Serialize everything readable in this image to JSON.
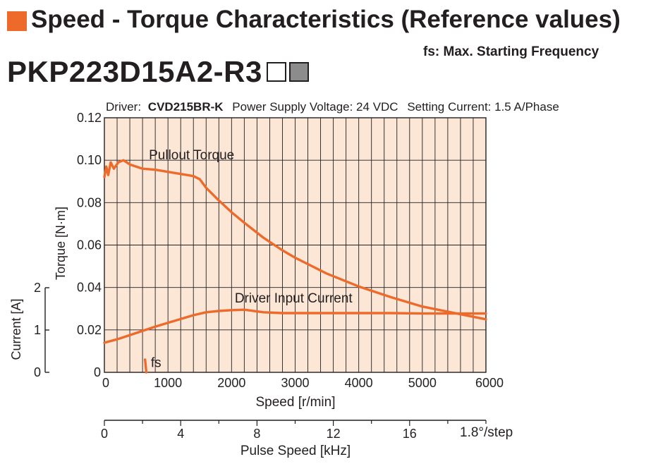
{
  "header": {
    "title": "Speed - Torque Characteristics (Reference values)",
    "fs_note": "fs: Max. Starting Frequency",
    "model": "PKP223D15A2-R3",
    "accent_color": "#ee6a2b"
  },
  "conditions": {
    "driver_label": "Driver:",
    "driver_model": "CVD215BR-K",
    "supply": "Power Supply Voltage: 24 VDC",
    "current": "Setting Current: 1.5 A/Phase"
  },
  "chart_data": {
    "type": "line",
    "plot_bg": "#fce7d7",
    "line_color": "#ee6a2b",
    "grid": true,
    "x_axis": {
      "label": "Speed [r/min]",
      "range": [
        0,
        6000
      ],
      "ticks": [
        0,
        1000,
        2000,
        3000,
        4000,
        5000,
        6000
      ],
      "tick_labels": [
        "0",
        "1000",
        "2000",
        "3000",
        "4000",
        "5000",
        "6000"
      ]
    },
    "pulse_axis": {
      "label": "Pulse Speed [kHz]",
      "range": [
        0,
        20
      ],
      "ticks": [
        0,
        4,
        8,
        12,
        16
      ],
      "tick_labels": [
        "0",
        "4",
        "8",
        "12",
        "16"
      ],
      "step_label": "1.8°/step"
    },
    "y_axis": {
      "label": "Torque [N·m]",
      "range": [
        0,
        0.12
      ],
      "ticks": [
        0,
        0.02,
        0.04,
        0.06,
        0.08,
        0.1,
        0.12
      ],
      "tick_labels": [
        "0",
        "0.02",
        "0.04",
        "0.06",
        "0.08",
        "0.10",
        "0.12"
      ]
    },
    "current_axis": {
      "label": "Current [A]",
      "range": [
        0,
        2
      ],
      "ticks": [
        0,
        1,
        2
      ],
      "tick_labels": [
        "0",
        "1",
        "2"
      ]
    },
    "series": [
      {
        "name": "Pullout Torque",
        "axis": "torque",
        "x": [
          0,
          30,
          60,
          100,
          150,
          220,
          300,
          400,
          600,
          800,
          1000,
          1200,
          1400,
          1500,
          1600,
          1800,
          2000,
          2200,
          2500,
          2800,
          3000,
          3500,
          4000,
          4500,
          5000,
          5500,
          6000
        ],
        "y": [
          0.092,
          0.097,
          0.093,
          0.099,
          0.096,
          0.099,
          0.1,
          0.098,
          0.096,
          0.0955,
          0.0945,
          0.0935,
          0.0925,
          0.091,
          0.087,
          0.081,
          0.0755,
          0.0705,
          0.0635,
          0.0575,
          0.054,
          0.0465,
          0.0405,
          0.0355,
          0.031,
          0.028,
          0.025
        ]
      },
      {
        "name": "Driver Input Current",
        "axis": "current",
        "x": [
          0,
          200,
          400,
          600,
          800,
          1000,
          1200,
          1400,
          1600,
          1800,
          2000,
          2200,
          2500,
          2800,
          3000,
          3500,
          4000,
          4500,
          5000,
          5500,
          6000
        ],
        "y": [
          0.7,
          0.78,
          0.88,
          0.98,
          1.08,
          1.17,
          1.26,
          1.35,
          1.42,
          1.45,
          1.47,
          1.48,
          1.42,
          1.4,
          1.4,
          1.4,
          1.4,
          1.4,
          1.39,
          1.39,
          1.39
        ]
      },
      {
        "name": "fs",
        "axis": "torque",
        "x": [
          640,
          660
        ],
        "y": [
          0.006,
          0.0
        ]
      }
    ]
  }
}
